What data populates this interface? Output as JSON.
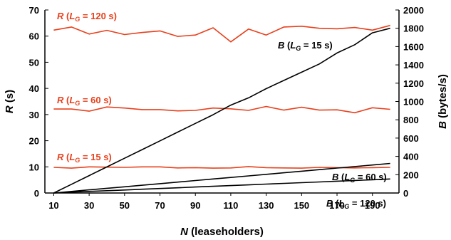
{
  "chart_data": {
    "type": "line",
    "xlabel": {
      "var": "N",
      "rest": " (leaseholders)"
    },
    "ylabel_left": {
      "var": "R",
      "rest": " (s)"
    },
    "ylabel_right": {
      "var": "B",
      "rest": " (bytes/s)"
    },
    "x_ticks": [
      10,
      30,
      50,
      70,
      90,
      110,
      130,
      150,
      170,
      190
    ],
    "xlim": [
      5,
      205
    ],
    "ylim_left": [
      0,
      70
    ],
    "ylim_left_ticks": [
      0,
      10,
      20,
      30,
      40,
      50,
      60,
      70
    ],
    "ylim_right": [
      0,
      2000
    ],
    "ylim_right_ticks": [
      0,
      200,
      400,
      600,
      800,
      1000,
      1200,
      1400,
      1600,
      1800,
      2000
    ],
    "colors": {
      "R": "#e8401c",
      "B": "#000000"
    },
    "series": [
      {
        "name": "R (LG = 120 s)",
        "label": {
          "var": "R",
          "pre": " (",
          "sub_var": "L",
          "sub": "G",
          "post": " = 120 s)"
        },
        "axis": "left",
        "color": "#e8401c",
        "x": [
          10,
          20,
          30,
          40,
          50,
          60,
          70,
          80,
          90,
          100,
          110,
          120,
          130,
          140,
          150,
          160,
          170,
          180,
          190,
          200
        ],
        "y": [
          62.3,
          63.5,
          60.8,
          62.2,
          60.6,
          61.4,
          62.0,
          59.9,
          60.4,
          63.2,
          57.8,
          62.7,
          60.4,
          63.5,
          63.8,
          63.0,
          62.8,
          63.3,
          62.3,
          64.1
        ]
      },
      {
        "name": "R (LG = 60 s)",
        "label": {
          "var": "R",
          "pre": " (",
          "sub_var": "L",
          "sub": "G",
          "post": " = 60 s)"
        },
        "axis": "left",
        "color": "#e8401c",
        "x": [
          10,
          20,
          30,
          40,
          50,
          60,
          70,
          80,
          90,
          100,
          110,
          120,
          130,
          140,
          150,
          160,
          170,
          180,
          190,
          200
        ],
        "y": [
          32.1,
          32.1,
          31.3,
          32.9,
          32.5,
          31.9,
          31.9,
          31.4,
          31.6,
          32.5,
          32.2,
          31.6,
          33.1,
          31.7,
          32.8,
          31.7,
          31.8,
          30.7,
          32.6,
          32.0
        ]
      },
      {
        "name": "R (LG = 15 s)",
        "label": {
          "var": "R",
          "pre": " (",
          "sub_var": "L",
          "sub": "G",
          "post": " = 15 s)"
        },
        "axis": "left",
        "color": "#e8401c",
        "x": [
          10,
          20,
          30,
          40,
          50,
          60,
          70,
          80,
          90,
          100,
          110,
          120,
          130,
          140,
          150,
          160,
          170,
          180,
          190,
          200
        ],
        "y": [
          9.8,
          9.5,
          10.0,
          9.9,
          9.8,
          10.0,
          10.0,
          9.6,
          9.7,
          9.5,
          9.6,
          10.1,
          9.7,
          9.6,
          9.5,
          9.8,
          9.7,
          9.6,
          9.7,
          9.8
        ]
      },
      {
        "name": "B (LG = 15 s)",
        "label": {
          "var": "B",
          "pre": " (",
          "sub_var": "L",
          "sub": "G",
          "post": " = 15 s)"
        },
        "axis": "right",
        "color": "#000000",
        "x": [
          10,
          20,
          30,
          40,
          50,
          60,
          70,
          80,
          90,
          100,
          110,
          120,
          130,
          140,
          150,
          160,
          170,
          180,
          190,
          200
        ],
        "y": [
          0,
          95,
          190,
          285,
          380,
          475,
          570,
          665,
          760,
          855,
          960,
          1040,
          1140,
          1230,
          1320,
          1410,
          1530,
          1620,
          1750,
          1800
        ]
      },
      {
        "name": "B (LG = 60 s)",
        "label": {
          "var": "B",
          "pre": " (",
          "sub_var": "L",
          "sub": "G",
          "post": " = 60 s)"
        },
        "axis": "right",
        "color": "#000000",
        "x": [
          10,
          20,
          30,
          40,
          50,
          60,
          70,
          80,
          90,
          100,
          110,
          120,
          130,
          140,
          150,
          160,
          170,
          180,
          190,
          200
        ],
        "y": [
          0,
          17,
          34,
          51,
          68,
          85,
          102,
          119,
          136,
          153,
          170,
          187,
          204,
          221,
          238,
          255,
          272,
          289,
          306,
          323
        ]
      },
      {
        "name": "B (LG = 120 s)",
        "label": {
          "var": "B",
          "pre": " (",
          "sub_var": "L",
          "sub": "G",
          "post": " = 120 s)"
        },
        "axis": "right",
        "color": "#000000",
        "x": [
          10,
          20,
          30,
          40,
          50,
          60,
          70,
          80,
          90,
          100,
          110,
          120,
          130,
          140,
          150,
          160,
          170,
          180,
          190,
          200
        ],
        "y": [
          0,
          9,
          17,
          25,
          33,
          41,
          49,
          57,
          65,
          73,
          81,
          89,
          97,
          105,
          113,
          121,
          129,
          137,
          145,
          153
        ]
      }
    ]
  }
}
